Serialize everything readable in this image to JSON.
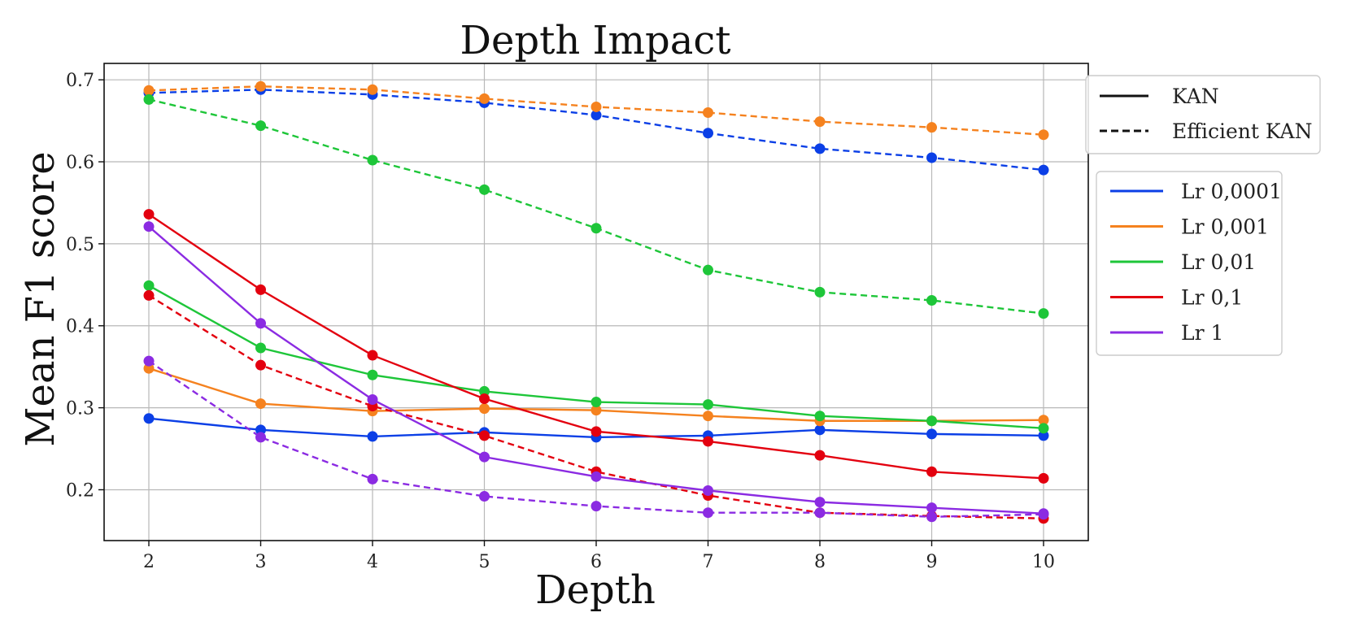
{
  "chart_data": {
    "type": "line",
    "title": "Depth Impact",
    "xlabel": "Depth",
    "ylabel": "Mean F1 score",
    "x": [
      2,
      3,
      4,
      5,
      6,
      7,
      8,
      9,
      10
    ],
    "xlim": [
      1.6,
      10.4
    ],
    "ylim": [
      0.138,
      0.72
    ],
    "xticks": [
      2,
      3,
      4,
      5,
      6,
      7,
      8,
      9,
      10
    ],
    "yticks": [
      0.2,
      0.3,
      0.4,
      0.5,
      0.6,
      0.7
    ],
    "xtick_labels": [
      "2",
      "3",
      "4",
      "5",
      "6",
      "7",
      "8",
      "9",
      "10"
    ],
    "ytick_labels": [
      "0.2",
      "0.3",
      "0.4",
      "0.5",
      "0.6",
      "0.7"
    ],
    "grid": true,
    "style_legend": {
      "placement": "upper-right-outside",
      "entries": [
        {
          "label": "KAN",
          "style": "solid"
        },
        {
          "label": "Efficient KAN",
          "style": "dashed"
        }
      ]
    },
    "color_legend": {
      "placement": "right-outside",
      "entries": [
        {
          "label": "Lr 0,0001",
          "color": "#0b3fe6"
        },
        {
          "label": "Lr 0,001",
          "color": "#f5821f"
        },
        {
          "label": "Lr 0,01",
          "color": "#1ec639"
        },
        {
          "label": "Lr 0,1",
          "color": "#e3000f"
        },
        {
          "label": "Lr 1",
          "color": "#8b2be2"
        }
      ]
    },
    "series": [
      {
        "name": "Lr 0,0001 KAN",
        "color": "#0b3fe6",
        "style": "solid",
        "values": [
          0.287,
          0.273,
          0.265,
          0.27,
          0.264,
          0.266,
          0.273,
          0.268,
          0.266
        ]
      },
      {
        "name": "Lr 0,0001 Efficient KAN",
        "color": "#0b3fe6",
        "style": "dashed",
        "values": [
          0.684,
          0.688,
          0.682,
          0.672,
          0.657,
          0.635,
          0.616,
          0.605,
          0.59
        ]
      },
      {
        "name": "Lr 0,001 KAN",
        "color": "#f5821f",
        "style": "solid",
        "values": [
          0.348,
          0.305,
          0.296,
          0.299,
          0.297,
          0.29,
          0.284,
          0.284,
          0.285
        ]
      },
      {
        "name": "Lr 0,001 Efficient KAN",
        "color": "#f5821f",
        "style": "dashed",
        "values": [
          0.687,
          0.692,
          0.688,
          0.677,
          0.667,
          0.66,
          0.649,
          0.642,
          0.633
        ]
      },
      {
        "name": "Lr 0,01 KAN",
        "color": "#1ec639",
        "style": "solid",
        "values": [
          0.449,
          0.373,
          0.34,
          0.32,
          0.307,
          0.304,
          0.29,
          0.284,
          0.275
        ]
      },
      {
        "name": "Lr 0,01 Efficient KAN",
        "color": "#1ec639",
        "style": "dashed",
        "values": [
          0.676,
          0.644,
          0.602,
          0.566,
          0.519,
          0.468,
          0.441,
          0.431,
          0.415
        ]
      },
      {
        "name": "Lr 0,1 KAN",
        "color": "#e3000f",
        "style": "solid",
        "values": [
          0.536,
          0.444,
          0.364,
          0.311,
          0.271,
          0.259,
          0.242,
          0.222,
          0.214
        ]
      },
      {
        "name": "Lr 0,1 Efficient KAN",
        "color": "#e3000f",
        "style": "dashed",
        "values": [
          0.437,
          0.352,
          0.302,
          0.266,
          0.222,
          0.193,
          0.172,
          0.168,
          0.165
        ]
      },
      {
        "name": "Lr 1 KAN",
        "color": "#8b2be2",
        "style": "solid",
        "values": [
          0.521,
          0.403,
          0.31,
          0.24,
          0.216,
          0.199,
          0.185,
          0.178,
          0.171
        ]
      },
      {
        "name": "Lr 1 Efficient KAN",
        "color": "#8b2be2",
        "style": "dashed",
        "values": [
          0.357,
          0.264,
          0.213,
          0.192,
          0.18,
          0.172,
          0.172,
          0.167,
          0.17
        ]
      }
    ]
  }
}
